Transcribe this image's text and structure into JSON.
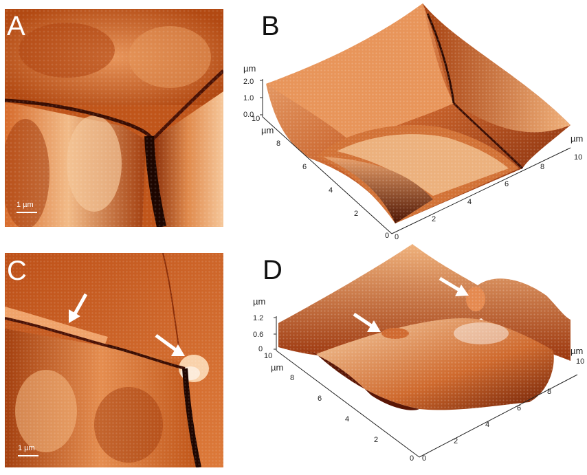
{
  "panels": {
    "a": {
      "letter": "A",
      "scale_label": "1 µm"
    },
    "b": {
      "letter": "B",
      "z_unit": "µm",
      "z_ticks": [
        "2.0",
        "1.0",
        "0.0"
      ],
      "y_unit": "µm",
      "y_ticks": [
        "10",
        "8",
        "6",
        "4",
        "2",
        "0"
      ],
      "x_unit": "µm",
      "x_ticks": [
        "0",
        "2",
        "4",
        "6",
        "8",
        "10"
      ]
    },
    "c": {
      "letter": "C",
      "scale_label": "1 µm"
    },
    "d": {
      "letter": "D",
      "z_unit": "µm",
      "z_ticks": [
        "1.2",
        "0.6",
        "0"
      ],
      "y_unit": "µm",
      "y_ticks": [
        "10",
        "8",
        "6",
        "4",
        "2",
        "0"
      ],
      "x_unit": "µm",
      "x_ticks": [
        "0",
        "2",
        "4",
        "6",
        "8",
        "10"
      ]
    }
  },
  "colors": {
    "surface_dark": "#5a1a05",
    "surface_mid": "#b84a16",
    "surface_light": "#f0b887",
    "arrow": "#ffffff"
  }
}
